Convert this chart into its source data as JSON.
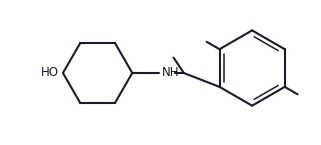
{
  "background_color": "#ffffff",
  "line_color": "#1a1a2e",
  "line_width": 1.5,
  "text_color": "#1a1a2e",
  "font_size": 8.5,
  "ho_label": "HO",
  "nh_label": "NH"
}
